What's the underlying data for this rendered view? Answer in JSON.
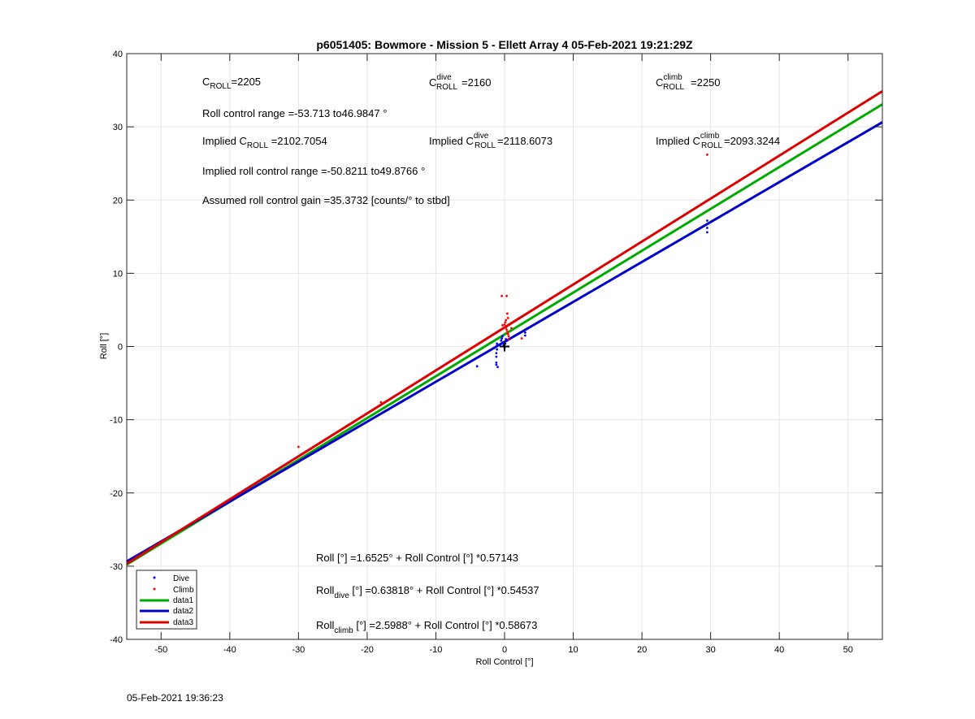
{
  "timestamp": "05-Feb-2021 19:36:23",
  "annotations": {
    "croll": {
      "base": "C",
      "sub": "ROLL",
      "value": "=2205"
    },
    "croll_dive": {
      "base": "C",
      "sup": "dive",
      "sub": "ROLL",
      "value": "=2160"
    },
    "croll_climb": {
      "base": "C",
      "sup": "climb",
      "sub": "ROLL",
      "value": "=2250"
    },
    "roll_range": "Roll control range =-53.713 to46.9847 °",
    "implied_croll": {
      "prefix": "Implied C",
      "sub": "ROLL",
      "value": " =2102.7054"
    },
    "implied_croll_dive": {
      "prefix": "Implied C",
      "sup": "dive",
      "sub": "ROLL",
      "value": " =2118.6073"
    },
    "implied_croll_climb": {
      "prefix": "Implied C",
      "sup": "climb",
      "sub": "ROLL",
      "value": " =2093.3244"
    },
    "implied_range": "Implied roll control range =-50.8211 to49.8766 °",
    "gain": "Assumed roll control gain =35.3732 [counts/° to stbd]",
    "eq_all": "Roll [°] =1.6525° + Roll Control [°] *0.57143",
    "eq_dive": {
      "pre": "Roll",
      "sub": "dive",
      "post": " [°] =0.63818° + Roll Control [°] *0.54537"
    },
    "eq_climb": {
      "pre": "Roll",
      "sub": "climb",
      "post": " [°] =2.5988° + Roll Control [°] *0.58673"
    }
  },
  "chart_data": {
    "type": "scatter",
    "title": "p6051405: Bowmore - Mission 5 - Ellett Array 4 05-Feb-2021 19:21:29Z",
    "xlabel": "Roll Control [°]",
    "ylabel": "Roll [°]",
    "xlim": [
      -55,
      55
    ],
    "ylim": [
      -40,
      40
    ],
    "xticks": [
      -50,
      -40,
      -30,
      -20,
      -10,
      0,
      10,
      20,
      30,
      40,
      50
    ],
    "yticks": [
      -40,
      -30,
      -20,
      -10,
      0,
      10,
      20,
      30,
      40
    ],
    "grid": true,
    "legend_location": "bottom-left",
    "series": [
      {
        "name": "Dive",
        "kind": "points",
        "color": "#0000ff",
        "x": [
          -1.2,
          -1.2,
          -1.2,
          -1.2,
          -1.1,
          -1.1,
          -1.1,
          -1.0,
          -0.5,
          -0.4,
          -0.3,
          -0.2,
          -0.1,
          0.0,
          0.1,
          0.2,
          3.0,
          3.0,
          -4.0,
          29.5,
          29.5,
          29.5
        ],
        "y": [
          -2.5,
          -2.2,
          -1.4,
          -0.9,
          -0.4,
          0.1,
          0.4,
          -2.8,
          0.8,
          1.1,
          1.4,
          0.6,
          0.2,
          -0.2,
          0.4,
          1.0,
          1.5,
          1.9,
          -2.7,
          15.6,
          16.2,
          17.2
        ]
      },
      {
        "name": "Climb",
        "kind": "points",
        "color": "#ff0000",
        "x": [
          -30.0,
          -18.0,
          -0.4,
          -0.3,
          0.3,
          0.4,
          0.5,
          0.2,
          0.1,
          0.0,
          0.2,
          0.3,
          0.4,
          0.5,
          0.6,
          0.6,
          2.5,
          1.0,
          29.5
        ],
        "y": [
          -13.7,
          -7.6,
          6.9,
          2.9,
          6.9,
          4.5,
          3.9,
          3.6,
          3.3,
          3.0,
          2.6,
          2.3,
          2.0,
          1.7,
          1.4,
          1.0,
          1.1,
          2.5,
          26.2
        ]
      },
      {
        "name": "data1",
        "kind": "line",
        "color": "#00aa00",
        "intercept": 1.6525,
        "slope": 0.57143
      },
      {
        "name": "data2",
        "kind": "line",
        "color": "#0000cc",
        "intercept": 0.63818,
        "slope": 0.54537
      },
      {
        "name": "data3",
        "kind": "line",
        "color": "#dd0000",
        "intercept": 2.5988,
        "slope": 0.58673
      }
    ],
    "marker": {
      "x": 0,
      "y": 0,
      "symbol": "+",
      "color": "#000000"
    }
  }
}
